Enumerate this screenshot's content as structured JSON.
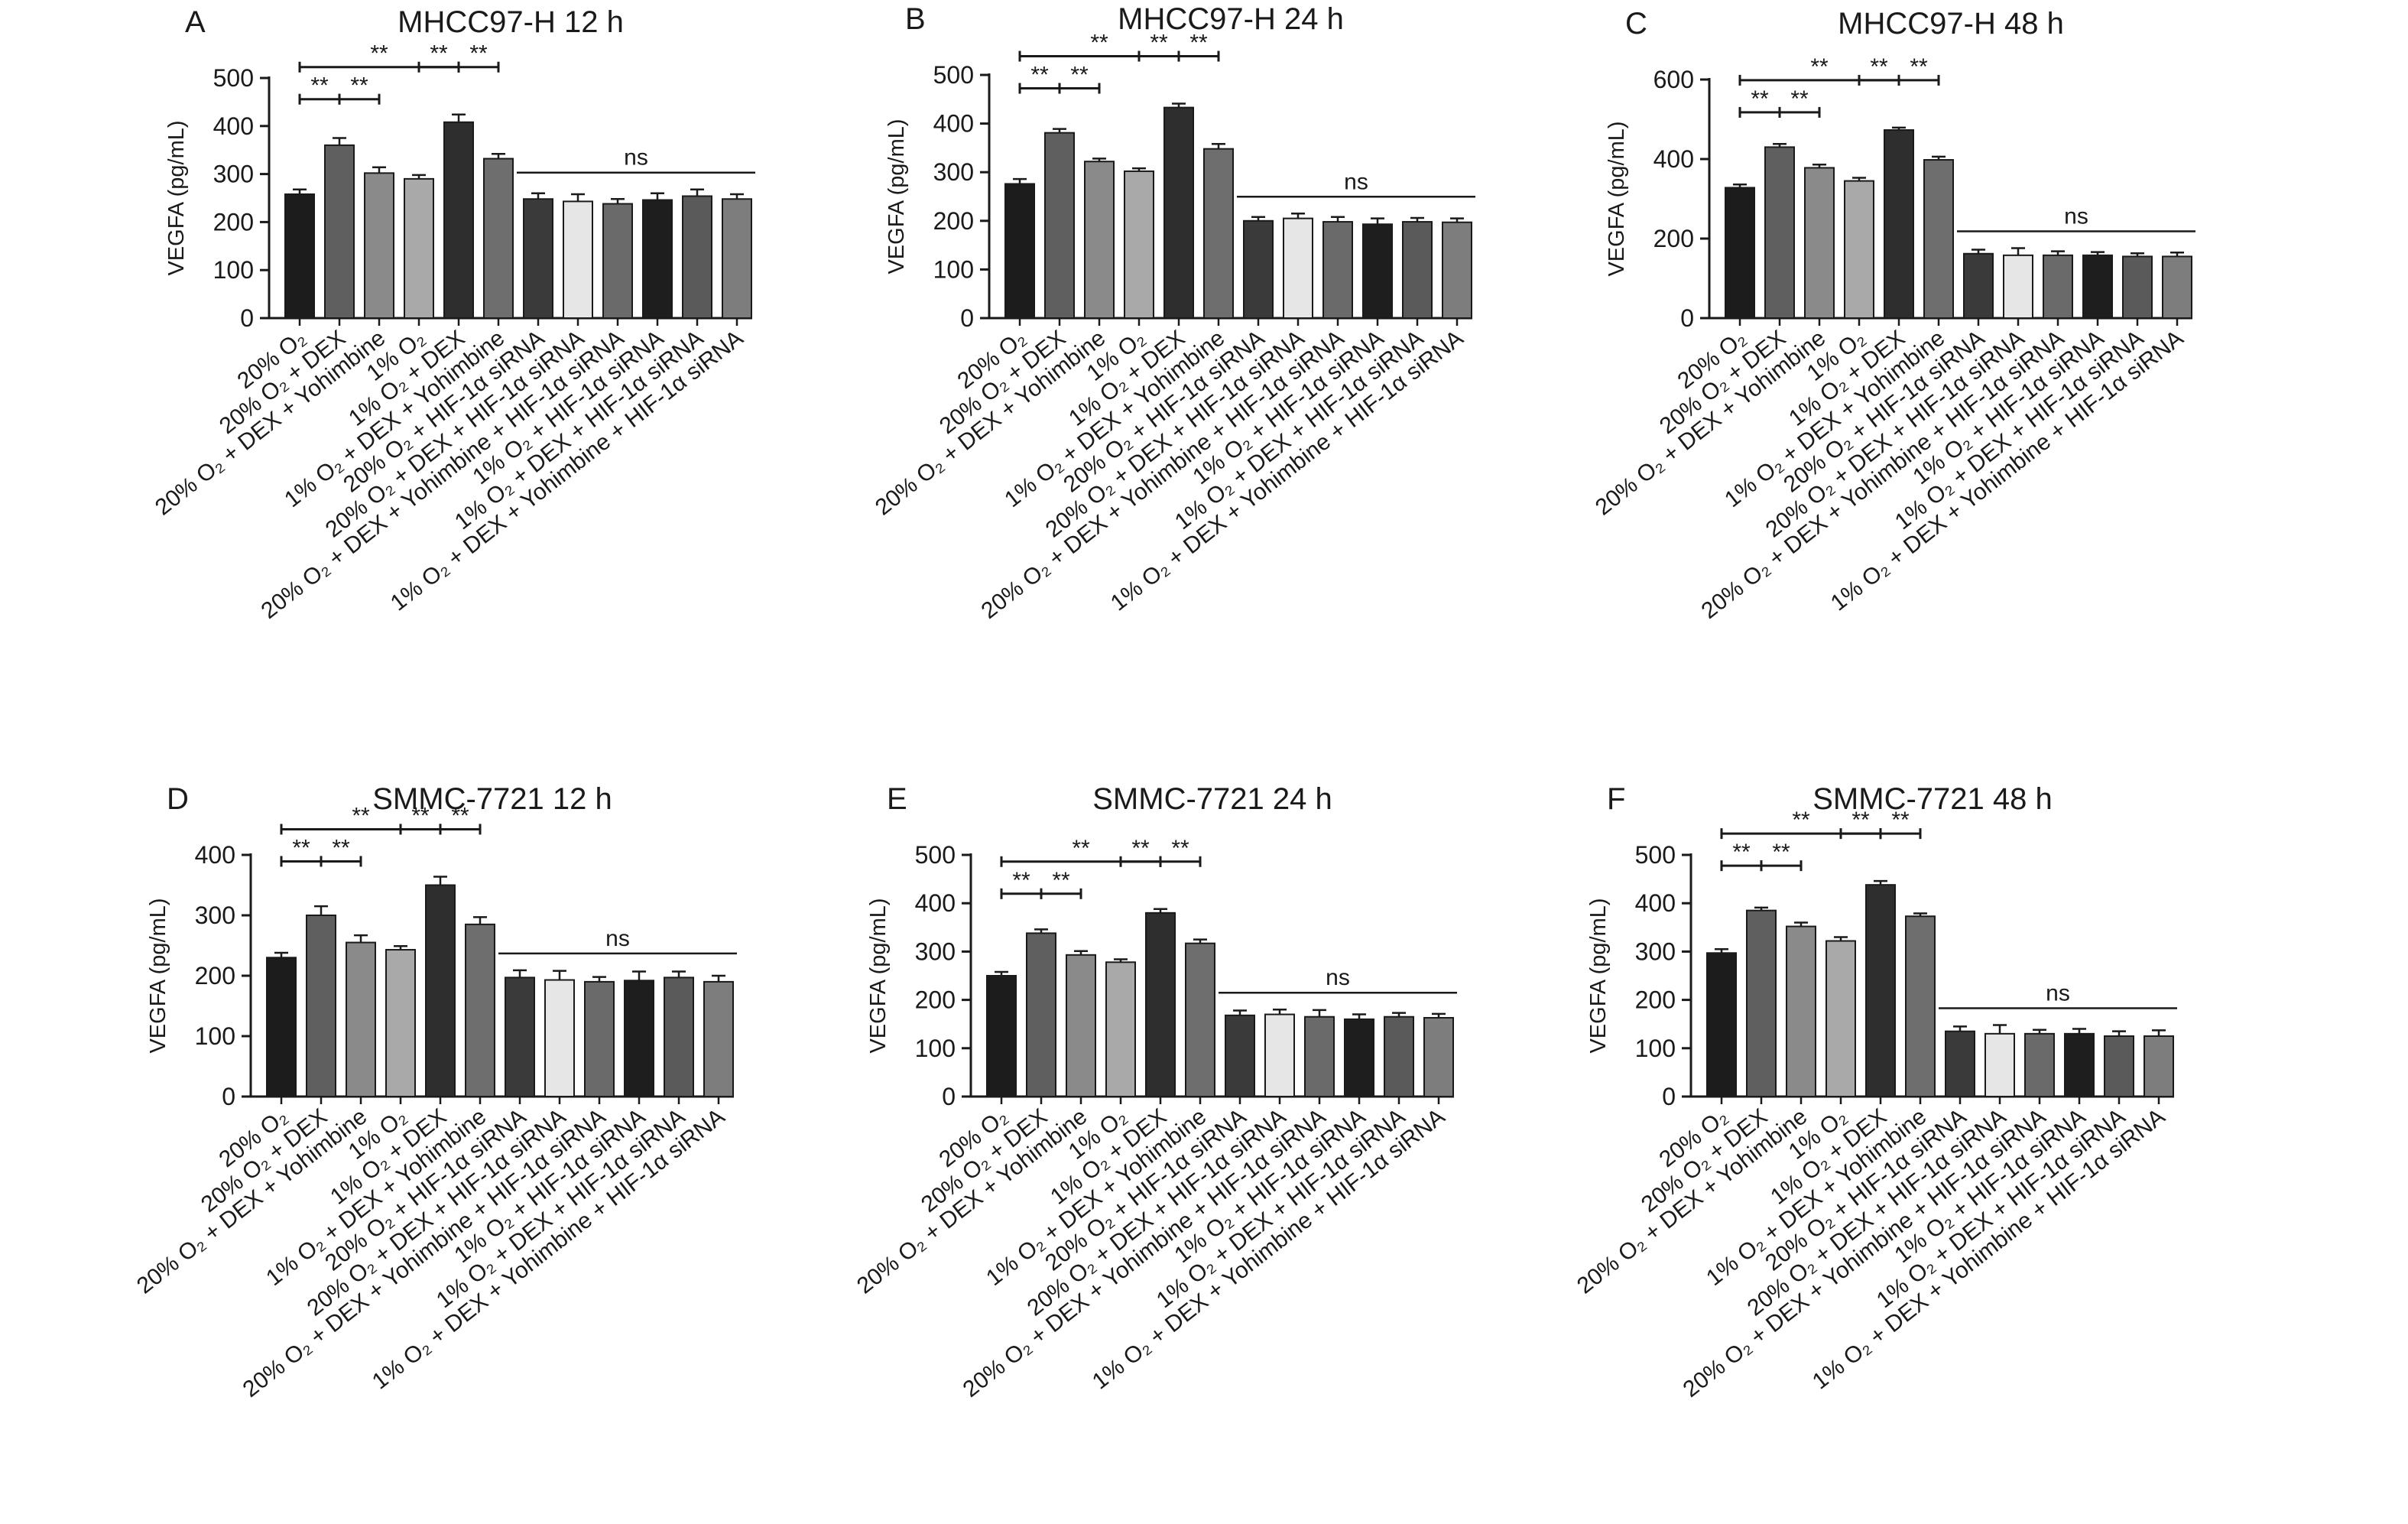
{
  "figure": {
    "categories": [
      "20% O₂",
      "20% O₂ + DEX",
      "20% O₂ + DEX + Yohimbine",
      "1% O₂",
      "1% O₂ + DEX",
      "1% O₂ + DEX + Yohimbine",
      "20% O₂ + HIF-1α siRNA",
      "20% O₂ + DEX + HIF-1α siRNA",
      "20% O₂ + DEX + Yohimbine + HIF-1α siRNA",
      "1% O₂ + HIF-1α siRNA",
      "1% O₂ + DEX + HIF-1α siRNA",
      "1% O₂ + DEX + Yohimbine + HIF-1α siRNA"
    ],
    "bar_colors": [
      "#1c1c1c",
      "#5f5f5f",
      "#8a8a8a",
      "#a9a9a9",
      "#2e2e2e",
      "#6e6e6e",
      "#3a3a3a",
      "#e6e6e6",
      "#6a6a6a",
      "#1e1e1e",
      "#5a5a5a",
      "#7d7d7d"
    ],
    "significance_star": "**",
    "ns_text": "ns"
  },
  "chart_data": [
    {
      "type": "bar",
      "letter": "A",
      "title": "MHCC97-H 12 h",
      "ylabel": "VEGFA (pg/mL)",
      "ylim": [
        0,
        500
      ],
      "yticks": [
        0,
        100,
        200,
        300,
        400,
        500
      ],
      "values": [
        258,
        360,
        302,
        290,
        408,
        332,
        248,
        243,
        238,
        246,
        254,
        248
      ],
      "errors": [
        10,
        15,
        12,
        8,
        16,
        10,
        12,
        15,
        10,
        14,
        14,
        10
      ]
    },
    {
      "type": "bar",
      "letter": "B",
      "title": "MHCC97-H 24 h",
      "ylabel": "VEGFA (pg/mL)",
      "ylim": [
        0,
        500
      ],
      "yticks": [
        0,
        100,
        200,
        300,
        400,
        500
      ],
      "values": [
        276,
        381,
        322,
        302,
        433,
        348,
        200,
        205,
        198,
        193,
        198,
        197
      ],
      "errors": [
        10,
        8,
        6,
        6,
        8,
        10,
        8,
        10,
        10,
        12,
        8,
        8
      ]
    },
    {
      "type": "bar",
      "letter": "C",
      "title": "MHCC97-H 48 h",
      "ylabel": "VEGFA (pg/mL)",
      "ylim": [
        0,
        600
      ],
      "yticks": [
        0,
        200,
        400,
        600
      ],
      "values": [
        328,
        430,
        378,
        345,
        473,
        398,
        162,
        158,
        158,
        158,
        155,
        155
      ],
      "errors": [
        8,
        8,
        8,
        8,
        6,
        8,
        10,
        18,
        10,
        8,
        8,
        10
      ]
    },
    {
      "type": "bar",
      "letter": "D",
      "title": "SMMC-7721 12 h",
      "ylabel": "VEGFA (pg/mL)",
      "ylim": [
        0,
        400
      ],
      "yticks": [
        0,
        100,
        200,
        300,
        400
      ],
      "values": [
        230,
        300,
        255,
        243,
        350,
        285,
        197,
        193,
        190,
        192,
        197,
        190
      ],
      "errors": [
        8,
        15,
        12,
        6,
        14,
        12,
        12,
        15,
        8,
        15,
        10,
        10
      ]
    },
    {
      "type": "bar",
      "letter": "E",
      "title": "SMMC-7721 24 h",
      "ylabel": "VEGFA (pg/mL)",
      "ylim": [
        0,
        500
      ],
      "yticks": [
        0,
        100,
        200,
        300,
        400,
        500
      ],
      "values": [
        250,
        338,
        293,
        278,
        380,
        317,
        168,
        170,
        165,
        160,
        165,
        163
      ],
      "errors": [
        8,
        8,
        8,
        6,
        8,
        8,
        10,
        10,
        14,
        10,
        8,
        8
      ]
    },
    {
      "type": "bar",
      "letter": "F",
      "title": "SMMC-7721 48 h",
      "ylabel": "VEGFA (pg/mL)",
      "ylim": [
        0,
        500
      ],
      "yticks": [
        0,
        100,
        200,
        300,
        400,
        500
      ],
      "values": [
        297,
        385,
        352,
        322,
        438,
        373,
        135,
        130,
        130,
        130,
        125,
        125
      ],
      "errors": [
        8,
        6,
        8,
        8,
        8,
        6,
        10,
        18,
        8,
        10,
        10,
        12
      ]
    }
  ]
}
